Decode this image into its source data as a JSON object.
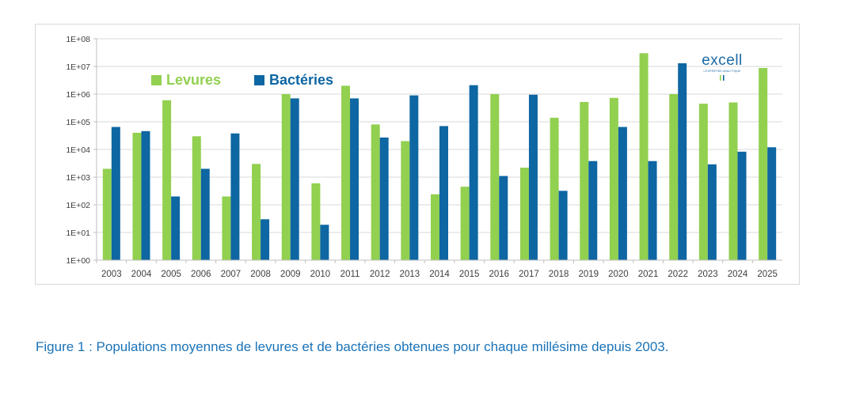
{
  "colors": {
    "levures": "#92d050",
    "bacteries": "#0e66a2",
    "axis": "#bfbfbf",
    "grid": "#d9d9d9",
    "tick_text": "#404040",
    "caption": "#1a73b8"
  },
  "logo": {
    "word": "excell",
    "subtitle": "L'EXPERTISE ANALYTIQUE"
  },
  "caption": "Figure 1 : Populations moyennes de levures et de bactéries obtenues pour chaque millésime depuis 2003.",
  "chart_data": {
    "type": "bar",
    "scale": "log10",
    "grid": true,
    "legend_position": "top-left",
    "ylim": [
      1,
      100000000
    ],
    "y_ticks": [
      "1E+00",
      "1E+01",
      "1E+02",
      "1E+03",
      "1E+04",
      "1E+05",
      "1E+06",
      "1E+07",
      "1E+08"
    ],
    "categories": [
      "2003",
      "2004",
      "2005",
      "2006",
      "2007",
      "2008",
      "2009",
      "2010",
      "2011",
      "2012",
      "2013",
      "2014",
      "2015",
      "2016",
      "2017",
      "2018",
      "2019",
      "2020",
      "2021",
      "2022",
      "2023",
      "2024",
      "2025"
    ],
    "series": [
      {
        "name": "Levures",
        "color": "#92d050",
        "values": [
          2000,
          40000,
          600000,
          30000,
          200,
          3000,
          1000000,
          600,
          2000000,
          80000,
          20000,
          240,
          450,
          1000000,
          2200,
          140000,
          520000,
          730000,
          30000000,
          1000000,
          450000,
          500000,
          8800000
        ]
      },
      {
        "name": "Bactéries",
        "color": "#0e66a2",
        "values": [
          65000,
          46000,
          200,
          2000,
          38000,
          30,
          700000,
          19,
          700000,
          27000,
          900000,
          70000,
          2100000,
          1100,
          950000,
          320,
          3800,
          65000,
          3800,
          13000000,
          2900,
          8300,
          12000
        ]
      }
    ]
  }
}
